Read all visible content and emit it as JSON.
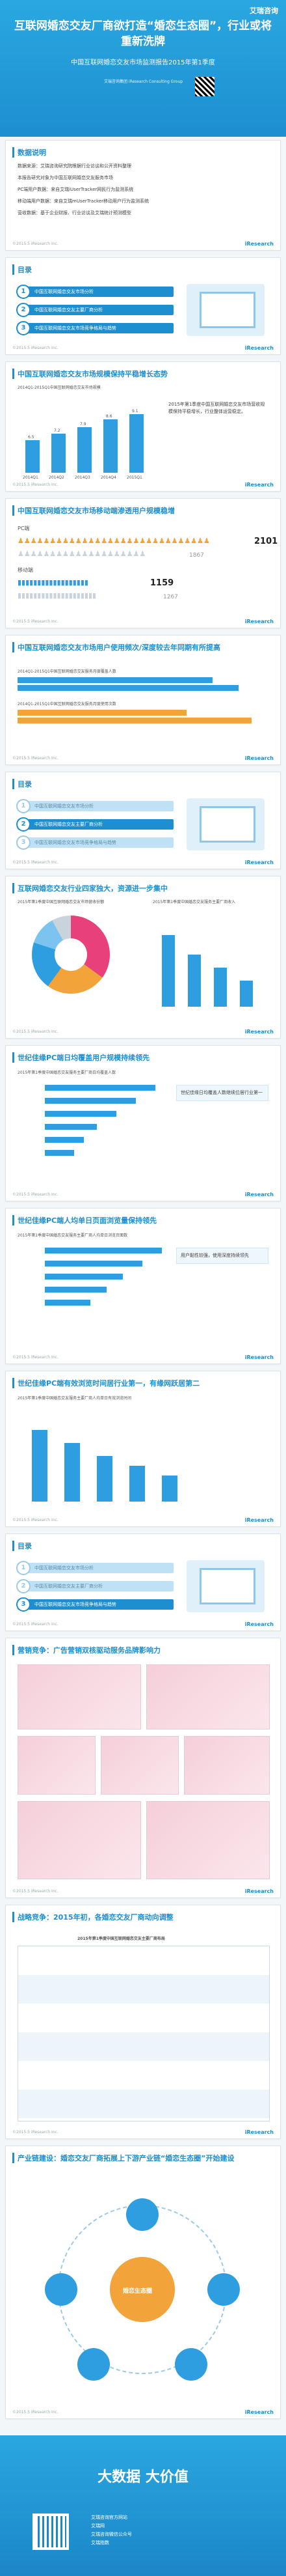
{
  "hero": {
    "brand": "艾瑞咨询",
    "title": "互联网婚恋交友厂商欲打造“婚恋生态圈”，行业或将重新洗牌",
    "subtitle": "中国互联网婚恋交友市场监测报告2015年第1季度",
    "tiny": "艾瑞咨询集团 iResearch Consulting Group"
  },
  "s1": {
    "title": "数据说明",
    "lines": [
      "数据来源：艾瑞咨询研究院根据行业访谈和公开资料整理",
      "本报告研究对象为中国互联网婚恋交友服务市场",
      "PC端用户数据：来自艾瑞iUserTracker网民行为监测系统",
      "移动端用户数据：来自艾瑞mUserTracker移动用户行为监测系统",
      "营收数据：基于企业财报、行业访谈及艾瑞统计预测模型"
    ],
    "foot": "©2015.5 iResearch Inc.",
    "brand": "iResearch"
  },
  "agenda": {
    "title": "目录",
    "items": [
      "中国互联网婚恋交友市场分析",
      "中国互联网婚恋交友主要厂商分析",
      "中国互联网婚恋交友市场竞争格局与趋势"
    ],
    "foot": "©2015.5 iResearch Inc.",
    "brand": "iResearch"
  },
  "s2": {
    "title": "中国互联网婚恋交友市场规模保持平稳增长态势",
    "chart_title": "2014Q1-2015Q1中国互联网婚恋交友市场规模",
    "bars": [
      {
        "label": "2014Q1",
        "value": "6.5"
      },
      {
        "label": "2014Q2",
        "value": "7.2"
      },
      {
        "label": "2014Q3",
        "value": "7.9"
      },
      {
        "label": "2014Q4",
        "value": "8.6"
      },
      {
        "label": "2015Q1",
        "value": "9.1"
      }
    ],
    "note": "2015年第1季度中国互联网婚恋交友市场营收规模保持平稳增长，行业整体运营稳定。",
    "foot": "©2015.5 iResearch Inc.",
    "brand": "iResearch"
  },
  "s3": {
    "title": "中国互联网婚恋交友市场移动端渗透用户规模稳增",
    "pc": "PC端",
    "mobile": "移动端",
    "v1": "2101",
    "v2": "1867",
    "v3": "1159",
    "v4": "1267",
    "foot": "©2015.5 iResearch Inc.",
    "brand": "iResearch"
  },
  "s4": {
    "title": "中国互联网婚恋交友市场用户使用频次/深度较去年同期有所提高",
    "l1": "2014Q1-2015Q1中国互联网婚恋交友服务月度覆盖人数",
    "l2": "2014Q1-2015Q1中国互联网婚恋交友服务月度使用次数",
    "foot": "©2015.5 iResearch Inc.",
    "brand": "iResearch"
  },
  "s5": {
    "title": "互联网婚恋交友行业四家独大，资源进一步集中",
    "left": "2015年第1季度中国互联网婚恋交友市场营收份额",
    "right": "2015年第1季度中国婚恋交友服务主要厂商收入",
    "foot": "©2015.5 iResearch Inc.",
    "brand": "iResearch"
  },
  "s6": {
    "title": "世纪佳缘PC端日均覆盖用户规模持续领先",
    "chart": "2015年第1季度中国婚恋交友服务主要厂商日均覆盖人数",
    "note": "世纪佳缘日均覆盖人数继续位居行业第一",
    "foot": "©2015.5 iResearch Inc.",
    "brand": "iResearch"
  },
  "s7": {
    "title": "世纪佳缘PC端人均单日页面浏览量保持领先",
    "chart": "2015年第1季度中国婚恋交友服务主要厂商人均单日浏览页面数",
    "note": "用户黏性较强，使用深度持续领先",
    "foot": "©2015.5 iResearch Inc.",
    "brand": "iResearch"
  },
  "s8": {
    "title": "世纪佳缘PC端有效浏览时间居行业第一，有缘网跃居第二",
    "chart": "2015年第1季度中国婚恋交友服务主要厂商人均单日有效浏览时间",
    "foot": "©2015.5 iResearch Inc.",
    "brand": "iResearch"
  },
  "s9": {
    "title": "营销竞争：广告营销双核驱动服务品牌影响力",
    "foot": "©2015.5 iResearch Inc.",
    "brand": "iResearch"
  },
  "s10": {
    "title": "战略竞争：2015年初，各婚恋交友厂商动向调整",
    "chart": "2015年第1季度中国互联网婚恋交友主要厂商布局",
    "foot": "©2015.5 iResearch Inc.",
    "brand": "iResearch"
  },
  "s11": {
    "title": "产业链建设：婚恋交友厂商拓展上下游产业链“婚恋生态圈”开始建设",
    "center": "婚恋生态圈",
    "foot": "©2015.5 iResearch Inc.",
    "brand": "iResearch"
  },
  "bottom": {
    "title": "大数据 大价值",
    "links": [
      "艾瑞咨询官方网站",
      "艾瑞网",
      "艾瑞咨询微信公众号",
      "艾瑞指数"
    ]
  }
}
